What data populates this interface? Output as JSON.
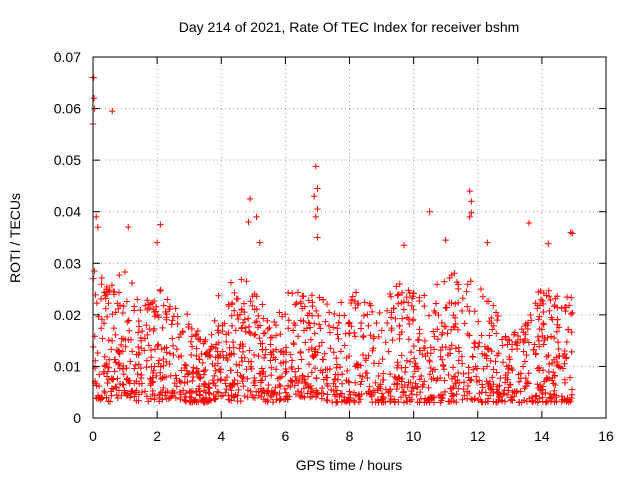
{
  "chart_data": {
    "type": "scatter",
    "title": "Day 214 of 2021, Rate Of TEC Index for receiver bshm",
    "xlabel": "GPS time / hours",
    "ylabel": "ROTI / TECUs",
    "xlim": [
      0,
      16
    ],
    "ylim": [
      0,
      0.07
    ],
    "xticks": [
      0,
      2,
      4,
      6,
      8,
      10,
      12,
      14,
      16
    ],
    "yticks": [
      0,
      0.01,
      0.02,
      0.03,
      0.04,
      0.05,
      0.06,
      0.07
    ],
    "xtick_labels": [
      "0",
      "2",
      "4",
      "6",
      "8",
      "10",
      "12",
      "14",
      "16"
    ],
    "ytick_labels": [
      "0",
      "0.01",
      "0.02",
      "0.03",
      "0.04",
      "0.05",
      "0.06",
      "0.07"
    ],
    "grid": true,
    "marker": "+",
    "color": "#ff0000",
    "series": [
      {
        "name": "ROTI",
        "notable_points": [
          [
            0.0,
            0.066
          ],
          [
            0.02,
            0.066
          ],
          [
            0.03,
            0.062
          ],
          [
            0.05,
            0.06
          ],
          [
            0.0,
            0.057
          ],
          [
            0.6,
            0.0595
          ],
          [
            0.1,
            0.039
          ],
          [
            0.15,
            0.037
          ],
          [
            1.1,
            0.037
          ],
          [
            2.1,
            0.0375
          ],
          [
            2.0,
            0.034
          ],
          [
            4.9,
            0.0425
          ],
          [
            5.1,
            0.039
          ],
          [
            4.85,
            0.038
          ],
          [
            5.2,
            0.034
          ],
          [
            6.95,
            0.0488
          ],
          [
            7.0,
            0.0445
          ],
          [
            6.9,
            0.043
          ],
          [
            7.0,
            0.0405
          ],
          [
            6.95,
            0.039
          ],
          [
            7.0,
            0.035
          ],
          [
            10.5,
            0.04
          ],
          [
            11.75,
            0.044
          ],
          [
            11.8,
            0.042
          ],
          [
            11.8,
            0.0398
          ],
          [
            11.75,
            0.039
          ],
          [
            13.6,
            0.0378
          ],
          [
            14.2,
            0.0338
          ],
          [
            14.9,
            0.036
          ],
          [
            14.95,
            0.0358
          ],
          [
            12.3,
            0.034
          ],
          [
            9.7,
            0.0335
          ],
          [
            11.0,
            0.0345
          ],
          [
            12.1,
            0.025
          ]
        ],
        "envelope": [
          [
            0.0,
            0.004,
            0.03
          ],
          [
            0.5,
            0.003,
            0.026
          ],
          [
            1.0,
            0.004,
            0.03
          ],
          [
            1.5,
            0.003,
            0.022
          ],
          [
            2.0,
            0.003,
            0.026
          ],
          [
            2.5,
            0.004,
            0.022
          ],
          [
            3.0,
            0.003,
            0.02
          ],
          [
            3.5,
            0.003,
            0.016
          ],
          [
            4.0,
            0.004,
            0.026
          ],
          [
            4.5,
            0.003,
            0.028
          ],
          [
            5.0,
            0.004,
            0.026
          ],
          [
            5.5,
            0.003,
            0.02
          ],
          [
            6.0,
            0.003,
            0.024
          ],
          [
            6.5,
            0.004,
            0.026
          ],
          [
            7.0,
            0.004,
            0.024
          ],
          [
            7.5,
            0.003,
            0.022
          ],
          [
            8.0,
            0.003,
            0.026
          ],
          [
            8.5,
            0.003,
            0.024
          ],
          [
            9.0,
            0.003,
            0.022
          ],
          [
            9.5,
            0.003,
            0.026
          ],
          [
            10.0,
            0.003,
            0.027
          ],
          [
            10.5,
            0.003,
            0.024
          ],
          [
            11.0,
            0.003,
            0.03
          ],
          [
            11.5,
            0.003,
            0.028
          ],
          [
            12.0,
            0.003,
            0.026
          ],
          [
            12.5,
            0.003,
            0.022
          ],
          [
            13.0,
            0.003,
            0.016
          ],
          [
            13.5,
            0.003,
            0.02
          ],
          [
            14.0,
            0.003,
            0.026
          ],
          [
            14.5,
            0.003,
            0.024
          ],
          [
            14.95,
            0.003,
            0.024
          ]
        ],
        "cloud_count": 1600
      }
    ]
  }
}
